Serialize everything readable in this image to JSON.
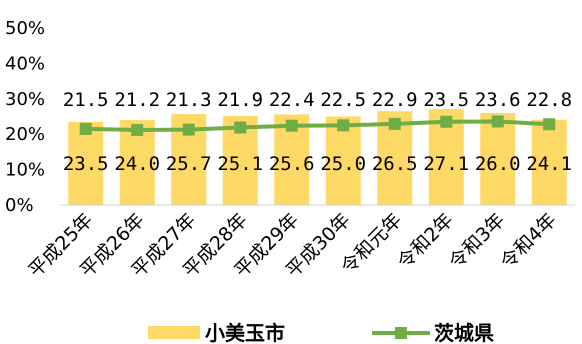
{
  "chart_data": {
    "type": "bar",
    "categories": [
      "平成25年",
      "平成26年",
      "平成27年",
      "平成28年",
      "平成29年",
      "平成30年",
      "令和元年",
      "令和2年",
      "令和3年",
      "令和4年"
    ],
    "series": [
      {
        "name": "小美玉市",
        "type": "bar",
        "color": "#FFD966",
        "values": [
          23.5,
          24.0,
          25.7,
          25.1,
          25.6,
          25.0,
          26.5,
          27.1,
          26.0,
          24.1
        ],
        "labels": [
          "23.5",
          "24.0",
          "25.7",
          "25.1",
          "25.6",
          "25.0",
          "26.5",
          "27.1",
          "26.0",
          "24.1"
        ]
      },
      {
        "name": "茨城県",
        "type": "line",
        "color": "#70AD47",
        "values": [
          21.5,
          21.2,
          21.3,
          21.9,
          22.4,
          22.5,
          22.9,
          23.5,
          23.6,
          22.8
        ],
        "labels": [
          "21.5",
          "21.2",
          "21.3",
          "21.9",
          "22.4",
          "22.5",
          "22.9",
          "23.5",
          "23.6",
          "22.8"
        ]
      }
    ],
    "yticks": [
      "0%",
      "10%",
      "20%",
      "30%",
      "40%",
      "50%"
    ],
    "ylim": [
      0,
      50
    ],
    "grid": false,
    "legend": "bottom",
    "title": "",
    "xlabel": "",
    "ylabel": ""
  }
}
